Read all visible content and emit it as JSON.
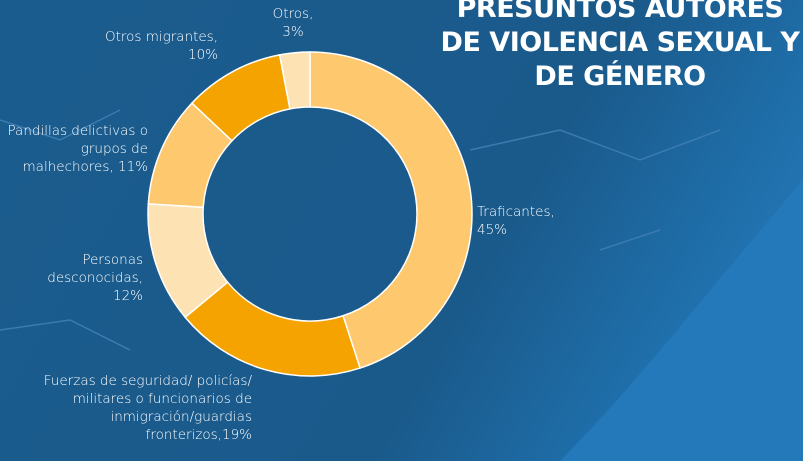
{
  "chart_data": {
    "type": "donut",
    "title": "PRESUNTOS AUTORES DE VIOLENCIA SEXUAL Y DE GÉNERO",
    "categories": [
      "Traficantes,",
      "Fuerzas de seguridad/ policías/ militares o funcionarios de inmigración/guardias fronterizos,",
      "Personas desconocidas,",
      "Pandillas delictivas o grupos de malhechores, ",
      "Otros migrantes,",
      "Otros,"
    ],
    "values": [
      45,
      19,
      12,
      11,
      10,
      3
    ],
    "value_labels": [
      "45%",
      "19%",
      "12%",
      "11%",
      "10%",
      "3%"
    ],
    "colors": [
      "#fdc86e",
      "#f5a300",
      "#fde2b3",
      "#fdc86e",
      "#f5a300",
      "#fde2b3"
    ]
  }
}
